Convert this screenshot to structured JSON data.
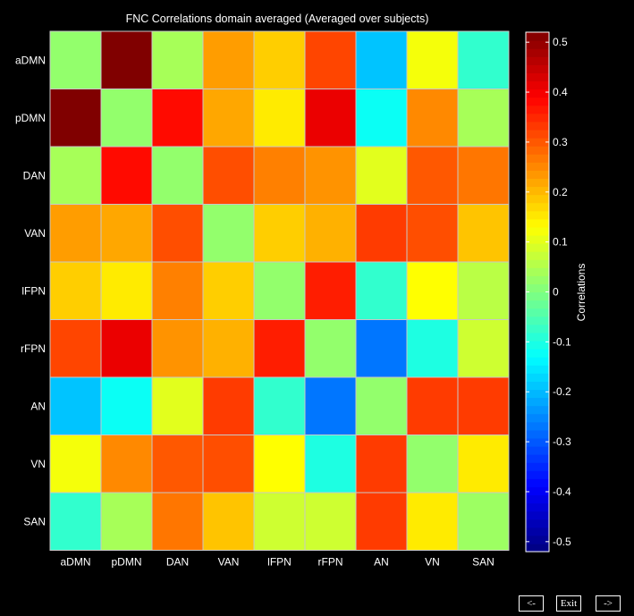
{
  "chart_data": {
    "type": "heatmap",
    "title": "FNC Correlations domain averaged (Averaged over subjects)",
    "rows": [
      "aDMN",
      "pDMN",
      "DAN",
      "VAN",
      "lFPN",
      "rFPN",
      "AN",
      "VN",
      "SAN"
    ],
    "cols": [
      "aDMN",
      "pDMN",
      "DAN",
      "VAN",
      "lFPN",
      "rFPN",
      "AN",
      "VN",
      "SAN"
    ],
    "values": [
      [
        0.02,
        0.52,
        0.04,
        0.23,
        0.18,
        0.32,
        -0.19,
        0.12,
        -0.08
      ],
      [
        0.52,
        0.02,
        0.38,
        0.22,
        0.15,
        0.41,
        -0.12,
        0.25,
        0.04
      ],
      [
        0.04,
        0.38,
        0.02,
        0.31,
        0.26,
        0.24,
        0.1,
        0.3,
        0.27
      ],
      [
        0.23,
        0.22,
        0.31,
        0.02,
        0.18,
        0.21,
        0.33,
        0.31,
        0.19
      ],
      [
        0.18,
        0.15,
        0.26,
        0.18,
        0.02,
        0.36,
        -0.08,
        0.13,
        0.06
      ],
      [
        0.32,
        0.41,
        0.24,
        0.21,
        0.36,
        0.02,
        -0.27,
        -0.1,
        0.08
      ],
      [
        -0.19,
        -0.12,
        0.1,
        0.33,
        -0.08,
        -0.27,
        0.02,
        0.33,
        0.33
      ],
      [
        0.12,
        0.25,
        0.3,
        0.31,
        0.13,
        -0.1,
        0.33,
        0.02,
        0.15
      ],
      [
        -0.08,
        0.04,
        0.27,
        0.19,
        0.08,
        0.08,
        0.33,
        0.15,
        0.03
      ]
    ],
    "clim": [
      -0.52,
      0.52
    ],
    "colormap": "jet",
    "colorbar": {
      "label": "Correlations",
      "ticks": [
        "-0.5",
        "-0.4",
        "-0.3",
        "-0.2",
        "-0.1",
        "0",
        "0.1",
        "0.2",
        "0.3",
        "0.4",
        "0.5"
      ],
      "tick_values": [
        -0.5,
        -0.4,
        -0.3,
        -0.2,
        -0.1,
        0,
        0.1,
        0.2,
        0.3,
        0.4,
        0.5
      ]
    },
    "grid": true,
    "grid_color": "#c8c8c8",
    "background": "#000000",
    "text_color": "#ffffff"
  },
  "nav": {
    "prev_label": "<-",
    "exit_label": "Exit",
    "next_label": "->"
  }
}
